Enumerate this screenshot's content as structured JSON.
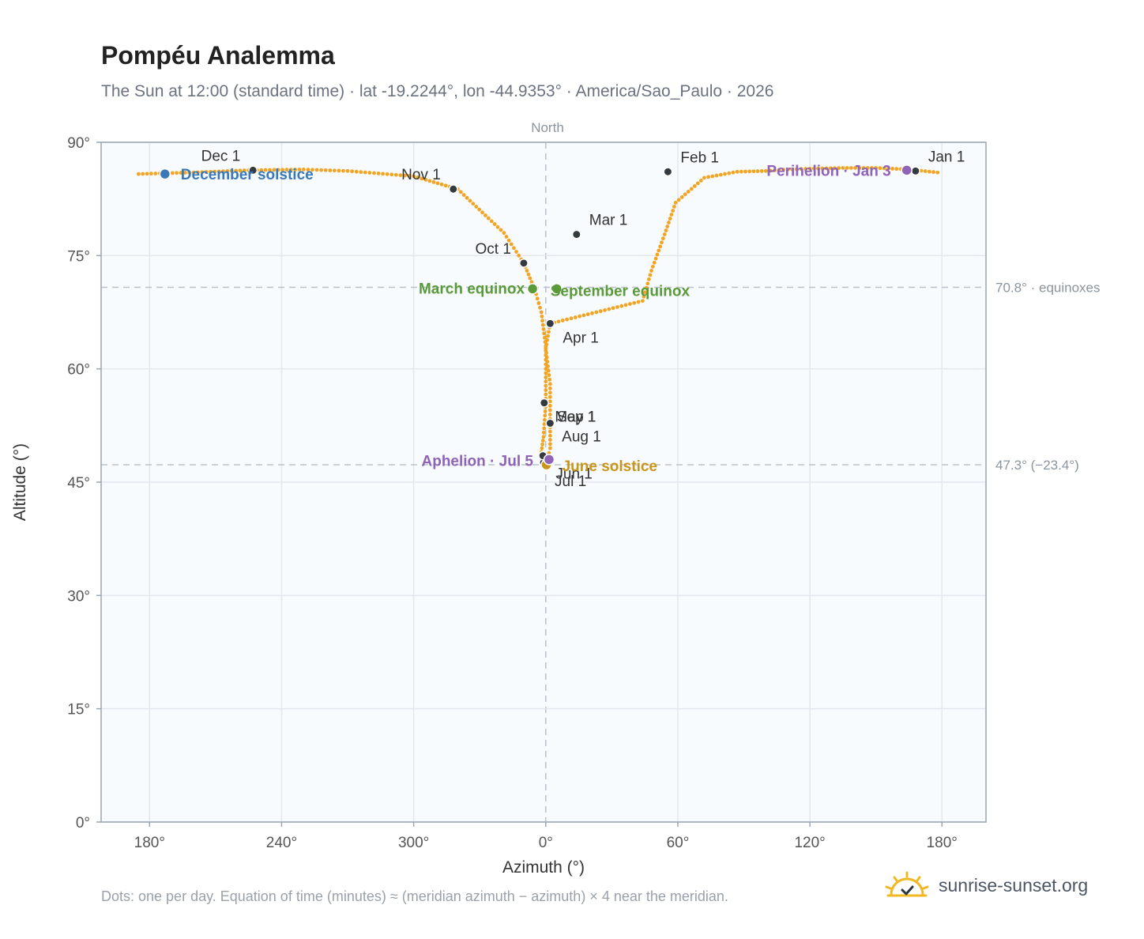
{
  "header": {
    "title": "Pompéu Analemma",
    "subtitle": "The Sun at 12:00 (standard time) · lat -19.2244°, lon -44.9353° · America/Sao_Paulo · 2026"
  },
  "footer": {
    "note": "Dots: one per day. Equation of time (minutes) ≈ (meridian azimuth − azimuth) × 4 near the meridian.",
    "brand": "sunrise-sunset.org",
    "brand_icon": "sun-icon"
  },
  "colors": {
    "curve": "#f2a423",
    "month_marker": "#333a40",
    "december_solstice": "#3a78b8",
    "june_solstice": "#c9961a",
    "equinox": "#5a9a3a",
    "apsis": "#8e63b8",
    "plot_bg": "#f8fbfd",
    "grid": "#e3e8ee",
    "reference_line": "#b9c1ca"
  },
  "chart_data": {
    "type": "scatter",
    "xlabel": "Azimuth (°)",
    "ylabel": "Altitude (°)",
    "x_axis": {
      "min": 158,
      "max": 560,
      "ticks": [
        180,
        240,
        300,
        360,
        420,
        480,
        540
      ],
      "tick_labels": [
        "180°",
        "240°",
        "300°",
        "0°",
        "60°",
        "120°",
        "180°"
      ],
      "north_at": 360,
      "north_label": "North",
      "grid": true
    },
    "y_axis": {
      "min": 0,
      "max": 90,
      "ticks": [
        0,
        15,
        30,
        45,
        60,
        75,
        90
      ],
      "tick_labels": [
        "0°",
        "15°",
        "30°",
        "45°",
        "60°",
        "75°",
        "90°"
      ],
      "grid": true
    },
    "reference_lines": [
      {
        "altitude": 70.8,
        "label": "70.8° · equinoxes"
      },
      {
        "altitude": 47.3,
        "label": "47.3° (−23.4°)"
      }
    ],
    "series": [
      {
        "points": [
          [
            538,
            86.0
          ],
          [
            525,
            86.4
          ],
          [
            510,
            86.6
          ],
          [
            495,
            86.6
          ],
          [
            480,
            86.5
          ],
          [
            470,
            86.4
          ],
          [
            460,
            86.2
          ],
          [
            447,
            86.1
          ],
          [
            432,
            85.3
          ],
          [
            419,
            82.0
          ],
          [
            414,
            77.8
          ],
          [
            408,
            73.0
          ],
          [
            404,
            69.0
          ],
          [
            362,
            66.0
          ],
          [
            360,
            62.7
          ],
          [
            362,
            58.0
          ],
          [
            362,
            52.8
          ],
          [
            362,
            49.5
          ],
          [
            361,
            48.2
          ],
          [
            360,
            47.4
          ],
          [
            358,
            48.0
          ],
          [
            358,
            49.0
          ],
          [
            359,
            51.0
          ],
          [
            360,
            55.5
          ],
          [
            360,
            60.0
          ],
          [
            360,
            63.0
          ],
          [
            358,
            67.5
          ],
          [
            355,
            70.5
          ],
          [
            350,
            74.0
          ],
          [
            341,
            78.0
          ],
          [
            320,
            83.8
          ],
          [
            300,
            85.5
          ],
          [
            270,
            86.2
          ],
          [
            250,
            86.4
          ],
          [
            225,
            86.3
          ],
          [
            200,
            86.0
          ],
          [
            175,
            85.8
          ]
        ]
      }
    ],
    "month_markers": [
      {
        "label": "Jan 1",
        "azimuth": 528.0,
        "altitude": 86.2
      },
      {
        "label": "Feb 1",
        "azimuth": 415.5,
        "altitude": 86.1
      },
      {
        "label": "Mar 1",
        "azimuth": 374.0,
        "altitude": 77.8
      },
      {
        "label": "Apr 1",
        "azimuth": 362.0,
        "altitude": 66.0
      },
      {
        "label": "May 1",
        "azimuth": 362.0,
        "altitude": 52.8
      },
      {
        "label": "Jun 1",
        "azimuth": 359.5,
        "altitude": 48.0
      },
      {
        "label": "Jul 1",
        "azimuth": 359.0,
        "altitude": 47.6
      },
      {
        "label": "Aug 1",
        "azimuth": 358.7,
        "altitude": 48.5
      },
      {
        "label": "Sep 1",
        "azimuth": 359.3,
        "altitude": 55.5
      },
      {
        "label": "Oct 1",
        "azimuth": 350.0,
        "altitude": 74.0
      },
      {
        "label": "Nov 1",
        "azimuth": 318.0,
        "altitude": 83.8
      },
      {
        "label": "Dec 1",
        "azimuth": 227.0,
        "altitude": 86.3
      }
    ],
    "events": [
      {
        "label": "December solstice",
        "azimuth": 187.0,
        "altitude": 85.8,
        "color_key": "december_solstice"
      },
      {
        "label": "March equinox",
        "azimuth": 354.0,
        "altitude": 70.6,
        "color_key": "equinox"
      },
      {
        "label": "September equinox",
        "azimuth": 365.0,
        "altitude": 70.6,
        "color_key": "equinox"
      },
      {
        "label": "June solstice",
        "azimuth": 360.3,
        "altitude": 47.3,
        "color_key": "june_solstice"
      },
      {
        "label": "Aphelion · Jul 5",
        "azimuth": 361.5,
        "altitude": 48.0,
        "color_key": "apsis"
      },
      {
        "label": "Perihelion · Jan 3",
        "azimuth": 524.0,
        "altitude": 86.3,
        "color_key": "apsis"
      }
    ]
  }
}
